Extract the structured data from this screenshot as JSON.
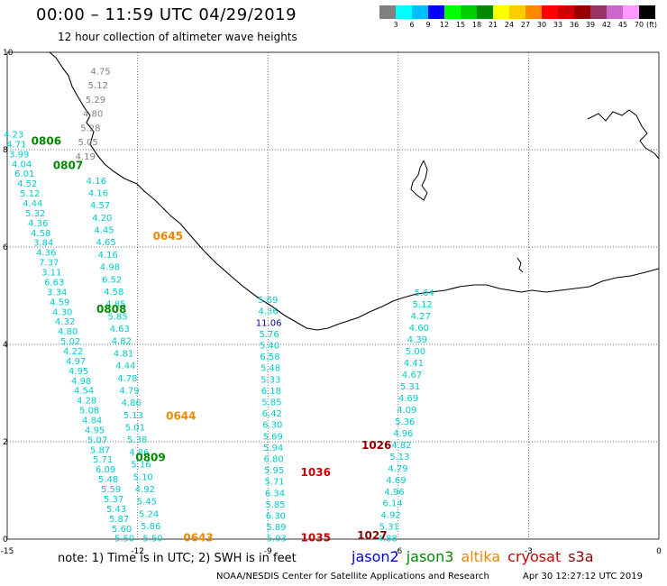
{
  "header": {
    "title": "00:00 – 11:59 UTC 04/29/2019",
    "subtitle": "12 hour collection of altimeter wave heights"
  },
  "legend": {
    "unit": "(ft)",
    "bins": [
      {
        "label": "3",
        "color": "#808080"
      },
      {
        "label": "6",
        "color": "#00ffff"
      },
      {
        "label": "9",
        "color": "#00bfff"
      },
      {
        "label": "12",
        "color": "#0000ff"
      },
      {
        "label": "15",
        "color": "#00ff00"
      },
      {
        "label": "18",
        "color": "#00cc00"
      },
      {
        "label": "21",
        "color": "#008800"
      },
      {
        "label": "24",
        "color": "#ffff00"
      },
      {
        "label": "27",
        "color": "#ffcc00"
      },
      {
        "label": "30",
        "color": "#ff8800"
      },
      {
        "label": "33",
        "color": "#ff0000"
      },
      {
        "label": "36",
        "color": "#cc0000"
      },
      {
        "label": "39",
        "color": "#990000"
      },
      {
        "label": "42",
        "color": "#993366"
      },
      {
        "label": "45",
        "color": "#cc66cc"
      },
      {
        "label": "70",
        "color": "#ff99ff"
      },
      {
        "label": "",
        "color": "#000000"
      }
    ]
  },
  "axes": {
    "x_ticks": [
      "-15",
      "-12",
      "-9",
      "-6",
      "-3",
      "0"
    ],
    "y_ticks": [
      "0",
      "2",
      "4",
      "6",
      "8",
      "10"
    ]
  },
  "colors": {
    "track": "#00cccc",
    "highval": "#000099",
    "jason3": "#008800",
    "altika": "#ee8800",
    "cryosat": "#cc0000",
    "s3a": "#880000",
    "jason2": "#0000dd"
  },
  "time_labels": [
    {
      "text": "0806",
      "sat": "jason3",
      "lon": -14.1,
      "lat": 8.1
    },
    {
      "text": "0807",
      "sat": "jason3",
      "lon": -13.6,
      "lat": 7.6
    },
    {
      "text": "0645",
      "sat": "altika",
      "lon": -11.3,
      "lat": 6.15
    },
    {
      "text": "0808",
      "sat": "jason3",
      "lon": -12.6,
      "lat": 4.65
    },
    {
      "text": "0644",
      "sat": "altika",
      "lon": -11.0,
      "lat": 2.45
    },
    {
      "text": "0809",
      "sat": "jason3",
      "lon": -11.7,
      "lat": 1.6
    },
    {
      "text": "0643",
      "sat": "altika",
      "lon": -10.6,
      "lat": -0.05
    },
    {
      "text": "1036",
      "sat": "cryosat",
      "lon": -7.9,
      "lat": 1.3
    },
    {
      "text": "1035",
      "sat": "cryosat",
      "lon": -7.9,
      "lat": -0.05
    },
    {
      "text": "1026",
      "sat": "s3a",
      "lon": -6.5,
      "lat": 1.85
    },
    {
      "text": "1027",
      "sat": "s3a",
      "lon": -6.6,
      "lat": 0.0
    }
  ],
  "tracks": [
    {
      "name": "A",
      "values": [
        "4.23",
        "4.71",
        "3.99",
        "4.04",
        "6.01",
        "4.52",
        "5.12",
        "4.44",
        "5.32",
        "4.36",
        "4.58",
        "3.84",
        "4.36",
        "7.37",
        "3.11",
        "6.63",
        "3.34",
        "4.59",
        "4.30",
        "4.32",
        "4.80",
        "5.02",
        "4.22",
        "4.97",
        "4.95",
        "4.98",
        "4.54",
        "4.28",
        "5.08",
        "4.84",
        "4.95",
        "5.07",
        "5.87",
        "5.71",
        "6.09",
        "5.48",
        "5.59",
        "5.37",
        "5.43",
        "5.87",
        "5.60",
        "5.50"
      ],
      "highlight": [],
      "start": {
        "lon": -14.85,
        "lat": 8.25
      },
      "end": {
        "lon": -12.3,
        "lat": -0.05
      }
    },
    {
      "name": "B",
      "values": [
        "4.16",
        "4.16",
        "4.57",
        "4.20",
        "4.45",
        "4.65",
        "4.16",
        "4.98",
        "6.52",
        "4.58",
        "4.85",
        "5.85",
        "4.63",
        "4.82",
        "4.81",
        "4.44",
        "4.78",
        "4.79",
        "4.86",
        "5.13",
        "5.01",
        "5.38",
        "4.86",
        "5.16",
        "5.10",
        "4.92",
        "5.45",
        "5.24",
        "5.86",
        "5.50"
      ],
      "highlight": [],
      "start": {
        "lon": -12.95,
        "lat": 7.3
      },
      "end": {
        "lon": -11.65,
        "lat": -0.05
      }
    },
    {
      "name": "C",
      "values": [
        "5.69",
        "4.36",
        "11.06",
        "5.76",
        "5.40",
        "6.58",
        "5.48",
        "5.33",
        "6.18",
        "5.85",
        "6.42",
        "6.30",
        "5.69",
        "5.94",
        "6.80",
        "5.95",
        "5.71",
        "6.34",
        "5.85",
        "6.30",
        "5.89",
        "5.93"
      ],
      "highlight": [
        2
      ],
      "start": {
        "lon": -9.0,
        "lat": 4.85
      },
      "end": {
        "lon": -8.8,
        "lat": -0.05
      }
    },
    {
      "name": "D",
      "values": [
        "5.64",
        "5.12",
        "4.27",
        "4.60",
        "4.39",
        "5.00",
        "4.41",
        "4.67",
        "5.31",
        "4.69",
        "4.09",
        "5.36",
        "4.96",
        "4.82",
        "5.13",
        "4.79",
        "4.69",
        "4.96",
        "6.14",
        "4.92",
        "5.31",
        "4.88"
      ],
      "highlight": [],
      "start": {
        "lon": -5.4,
        "lat": 5.0
      },
      "end": {
        "lon": -6.25,
        "lat": -0.05
      }
    },
    {
      "name": "E",
      "values": [
        "4.75",
        "5.12",
        "5.29",
        "4.80",
        "5.28",
        "5.05",
        "4.19"
      ],
      "highlight": [],
      "start": {
        "lon": -12.85,
        "lat": 9.55
      },
      "end": {
        "lon": -13.2,
        "lat": 7.8
      },
      "gray": true
    }
  ],
  "footer": {
    "note": "note: 1) Time is in UTC; 2) SWH is in feet",
    "sats": [
      {
        "label": "jason2",
        "color": "#0000dd"
      },
      {
        "label": "jason3",
        "color": "#008800"
      },
      {
        "label": "altika",
        "color": "#ee8800"
      },
      {
        "label": "cryosat",
        "color": "#cc0000"
      },
      {
        "label": "s3a",
        "color": "#880000"
      }
    ],
    "credit": "NOAA/NESDIS Center for Satellite Applications and Research",
    "timestamp": "Apr 30 12:27:12 UTC 2019"
  }
}
